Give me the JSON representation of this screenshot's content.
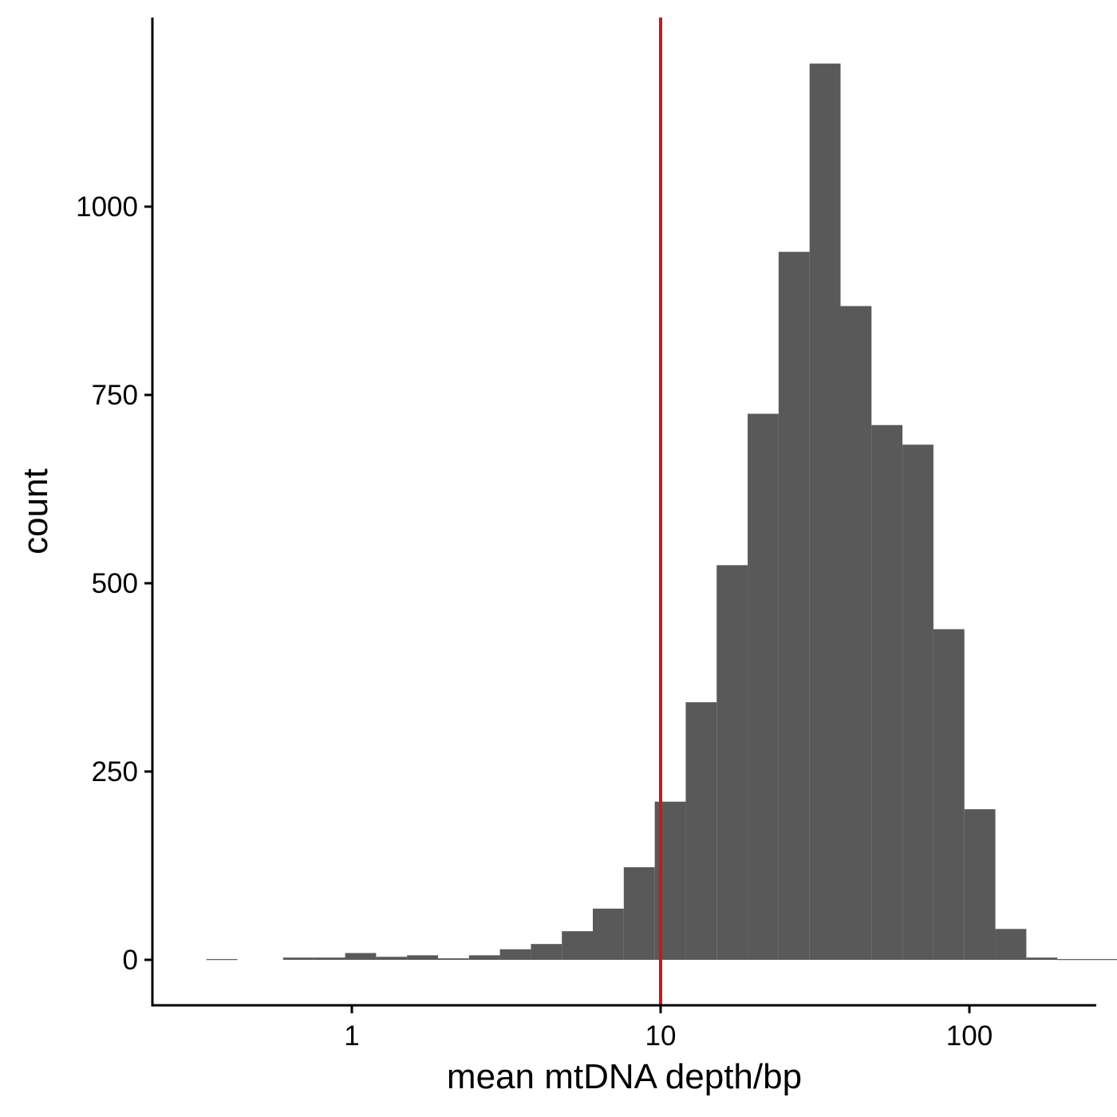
{
  "chart_data": {
    "type": "bar",
    "title": "",
    "xlabel": "mean mtDNA depth/bp",
    "ylabel": "count",
    "x_scale": "log10",
    "xlim": [
      0.25,
      250
    ],
    "ylim": [
      -120,
      1260
    ],
    "x_ticks": [
      {
        "value": 1,
        "label": "1"
      },
      {
        "value": 10,
        "label": "10"
      },
      {
        "value": 100,
        "label": "100"
      }
    ],
    "y_ticks": [
      {
        "value": 0,
        "label": "0"
      },
      {
        "value": 250,
        "label": "250"
      },
      {
        "value": 500,
        "label": "500"
      },
      {
        "value": 750,
        "label": "750"
      },
      {
        "value": 1000,
        "label": "1000"
      }
    ],
    "bins": [
      {
        "x0": 0.338,
        "x1": 0.426,
        "count": 1
      },
      {
        "x0": 0.599,
        "x1": 0.755,
        "count": 3
      },
      {
        "x0": 0.755,
        "x1": 0.951,
        "count": 3
      },
      {
        "x0": 0.951,
        "x1": 1.198,
        "count": 9
      },
      {
        "x0": 1.198,
        "x1": 1.509,
        "count": 4
      },
      {
        "x0": 1.509,
        "x1": 1.901,
        "count": 6
      },
      {
        "x0": 1.901,
        "x1": 2.395,
        "count": 2
      },
      {
        "x0": 2.395,
        "x1": 3.017,
        "count": 6
      },
      {
        "x0": 3.017,
        "x1": 3.801,
        "count": 14
      },
      {
        "x0": 3.801,
        "x1": 4.788,
        "count": 21
      },
      {
        "x0": 4.788,
        "x1": 6.031,
        "count": 38
      },
      {
        "x0": 6.031,
        "x1": 7.598,
        "count": 68
      },
      {
        "x0": 7.598,
        "x1": 9.572,
        "count": 123
      },
      {
        "x0": 9.572,
        "x1": 12.058,
        "count": 210
      },
      {
        "x0": 12.058,
        "x1": 15.19,
        "count": 342
      },
      {
        "x0": 15.19,
        "x1": 19.135,
        "count": 524
      },
      {
        "x0": 19.135,
        "x1": 24.105,
        "count": 725
      },
      {
        "x0": 24.105,
        "x1": 30.366,
        "count": 940
      },
      {
        "x0": 30.366,
        "x1": 38.254,
        "count": 1190
      },
      {
        "x0": 38.254,
        "x1": 48.19,
        "count": 868
      },
      {
        "x0": 48.19,
        "x1": 60.707,
        "count": 710
      },
      {
        "x0": 60.707,
        "x1": 76.475,
        "count": 684
      },
      {
        "x0": 76.475,
        "x1": 96.339,
        "count": 439
      },
      {
        "x0": 96.339,
        "x1": 121.363,
        "count": 200
      },
      {
        "x0": 121.363,
        "x1": 152.886,
        "count": 41
      },
      {
        "x0": 152.886,
        "x1": 192.598,
        "count": 3
      },
      {
        "x0": 192.598,
        "x1": 242.624,
        "count": 1
      },
      {
        "x0": 242.624,
        "x1": 305.645,
        "count": 1
      }
    ],
    "bar_color": "#595959",
    "reference_line": {
      "x": 10,
      "color": "#B22222"
    },
    "axis_color": "#000000",
    "grid": false,
    "legend": "none"
  }
}
